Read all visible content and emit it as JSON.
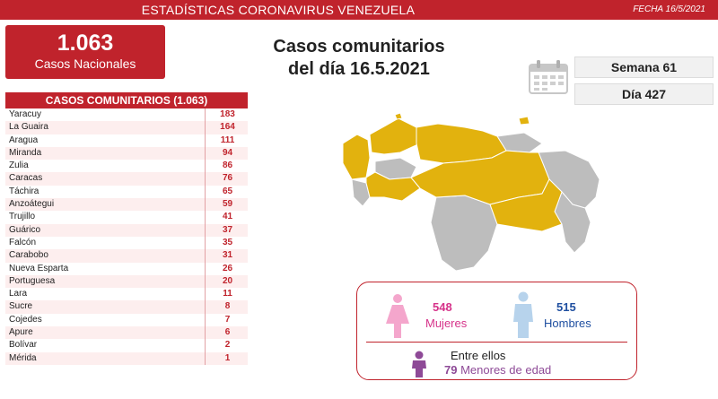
{
  "header": {
    "title": "ESTADÍSTICAS CORONAVIRUS VENEZUELA",
    "date": "FECHA 16/5/2021"
  },
  "total": {
    "number": "1.063",
    "label": "Casos Nacionales"
  },
  "headline": {
    "line1": "Casos comunitarios",
    "line2": "del día 16.5.2021"
  },
  "calendar": {
    "week": "Semana 61",
    "day": "Día 427",
    "icon": "calendar-icon"
  },
  "table": {
    "header": "CASOS COMUNITARIOS (1.063)",
    "rows": [
      {
        "state": "Yaracuy",
        "cases": "183"
      },
      {
        "state": "La Guaira",
        "cases": "164"
      },
      {
        "state": "Aragua",
        "cases": "111"
      },
      {
        "state": "Miranda",
        "cases": "94"
      },
      {
        "state": "Zulia",
        "cases": "86"
      },
      {
        "state": "Caracas",
        "cases": "76"
      },
      {
        "state": "Táchira",
        "cases": "65"
      },
      {
        "state": "Anzoátegui",
        "cases": "59"
      },
      {
        "state": "Trujillo",
        "cases": "41"
      },
      {
        "state": "Guárico",
        "cases": "37"
      },
      {
        "state": "Falcón",
        "cases": "35"
      },
      {
        "state": "Carabobo",
        "cases": "31"
      },
      {
        "state": "Nueva Esparta",
        "cases": "26"
      },
      {
        "state": "Portuguesa",
        "cases": "20"
      },
      {
        "state": "Lara",
        "cases": "11"
      },
      {
        "state": "Sucre",
        "cases": "8"
      },
      {
        "state": "Cojedes",
        "cases": "7"
      },
      {
        "state": "Apure",
        "cases": "6"
      },
      {
        "state": "Bolívar",
        "cases": "2"
      },
      {
        "state": "Mérida",
        "cases": "1"
      }
    ]
  },
  "map": {
    "highlight_color": "#e2b20e",
    "base_color": "#bdbdbd"
  },
  "gender": {
    "female_count": "548",
    "female_label": "Mujeres",
    "male_count": "515",
    "male_label": "Hombres",
    "minors_intro": "Entre ellos",
    "minors_count": "79",
    "minors_label": "Menores de edad"
  },
  "colors": {
    "accent": "#c0232c",
    "female": "#d6338a",
    "male": "#1f4fa0",
    "minors": "#8e4a97"
  }
}
